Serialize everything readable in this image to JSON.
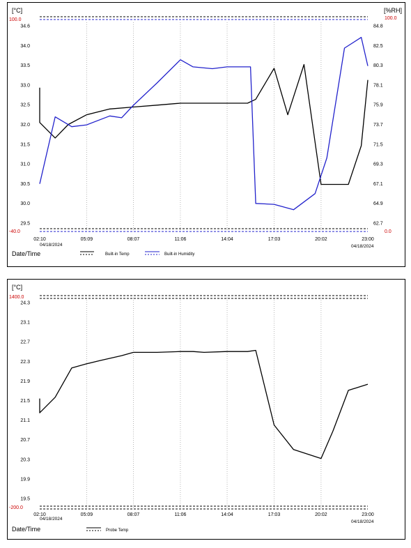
{
  "chart_data": [
    {
      "type": "line",
      "left_unit": "[°C]",
      "right_unit": "[%RH]",
      "left_limit_high": "100.0",
      "left_limit_low": "-40.0",
      "right_limit_high": "100.0",
      "right_limit_low": "0.0",
      "y_ticks": [
        "34.6",
        "34.0",
        "33.5",
        "33.0",
        "32.5",
        "32.0",
        "31.5",
        "31.0",
        "30.5",
        "30.0",
        "29.5"
      ],
      "y_range": [
        29.5,
        34.6
      ],
      "y2_ticks": [
        "84.8",
        "82.5",
        "80.3",
        "78.1",
        "75.9",
        "73.7",
        "71.5",
        "69.3",
        "67.1",
        "64.9",
        "62.7"
      ],
      "y2_range": [
        62.7,
        84.8
      ],
      "x_ticks": [
        "02:10",
        "05:09",
        "08:07",
        "11:06",
        "14:04",
        "17:03",
        "20:02",
        "23:00"
      ],
      "x_start_date": "04/18/2024",
      "x_end_date": "04/18/2024",
      "xlabel": "Date/Time",
      "legend_position": "bottom",
      "series": [
        {
          "name": "Built-in Temp",
          "color": "#000000",
          "axis": "left",
          "x": [
            "02:10",
            "02:10",
            "03:09",
            "03:59",
            "05:09",
            "06:37",
            "08:07",
            "09:37",
            "11:06",
            "12:36",
            "14:04",
            "15:22",
            "15:53",
            "17:03",
            "17:55",
            "18:57",
            "20:02",
            "20:47",
            "21:46",
            "22:35",
            "23:00"
          ],
          "values": [
            33.0,
            32.1,
            31.7,
            32.05,
            32.3,
            32.45,
            32.5,
            32.55,
            32.6,
            32.6,
            32.6,
            32.6,
            32.7,
            33.5,
            32.3,
            33.6,
            30.5,
            30.5,
            30.5,
            31.5,
            33.2
          ]
        },
        {
          "name": "Built-in Humidity",
          "color": "#2222cc",
          "axis": "right",
          "x": [
            "02:10",
            "03:09",
            "04:12",
            "05:09",
            "06:37",
            "07:22",
            "08:07",
            "09:37",
            "11:06",
            "11:54",
            "13:08",
            "14:04",
            "15:33",
            "15:53",
            "17:03",
            "18:17",
            "19:39",
            "20:24",
            "21:31",
            "22:35",
            "23:00"
          ],
          "values": [
            67.1,
            74.6,
            73.5,
            73.7,
            74.7,
            74.5,
            75.9,
            78.4,
            81.0,
            80.2,
            80.0,
            80.2,
            80.2,
            64.9,
            64.8,
            64.2,
            66.0,
            70.0,
            82.3,
            83.5,
            80.3
          ]
        }
      ]
    },
    {
      "type": "line",
      "left_unit": "[°C]",
      "left_limit_high": "1400.0",
      "left_limit_low": "-200.0",
      "y_ticks": [
        "24.3",
        "23.1",
        "22.7",
        "22.3",
        "21.9",
        "21.5",
        "21.1",
        "20.7",
        "20.3",
        "19.9",
        "19.5"
      ],
      "y_range": [
        19.5,
        24.3
      ],
      "x_ticks": [
        "02:10",
        "05:09",
        "08:07",
        "11:06",
        "14:04",
        "17:03",
        "20:02",
        "23:00"
      ],
      "x_start_date": "04/18/2024",
      "x_end_date": "04/18/2024",
      "xlabel": "Date/Time",
      "legend_position": "bottom",
      "series": [
        {
          "name": "Probe Temp",
          "color": "#000000",
          "axis": "left",
          "x": [
            "02:10",
            "02:10",
            "03:09",
            "04:12",
            "05:09",
            "06:00",
            "07:22",
            "08:07",
            "09:37",
            "11:06",
            "11:54",
            "12:36",
            "14:04",
            "15:22",
            "15:53",
            "17:03",
            "18:17",
            "20:02",
            "20:47",
            "21:46",
            "23:00"
          ],
          "values": [
            21.95,
            21.6,
            21.98,
            22.7,
            22.8,
            22.88,
            23.0,
            23.08,
            23.08,
            23.1,
            23.1,
            23.08,
            23.1,
            23.1,
            23.13,
            21.3,
            20.7,
            20.48,
            21.15,
            22.15,
            22.3
          ]
        }
      ]
    }
  ]
}
